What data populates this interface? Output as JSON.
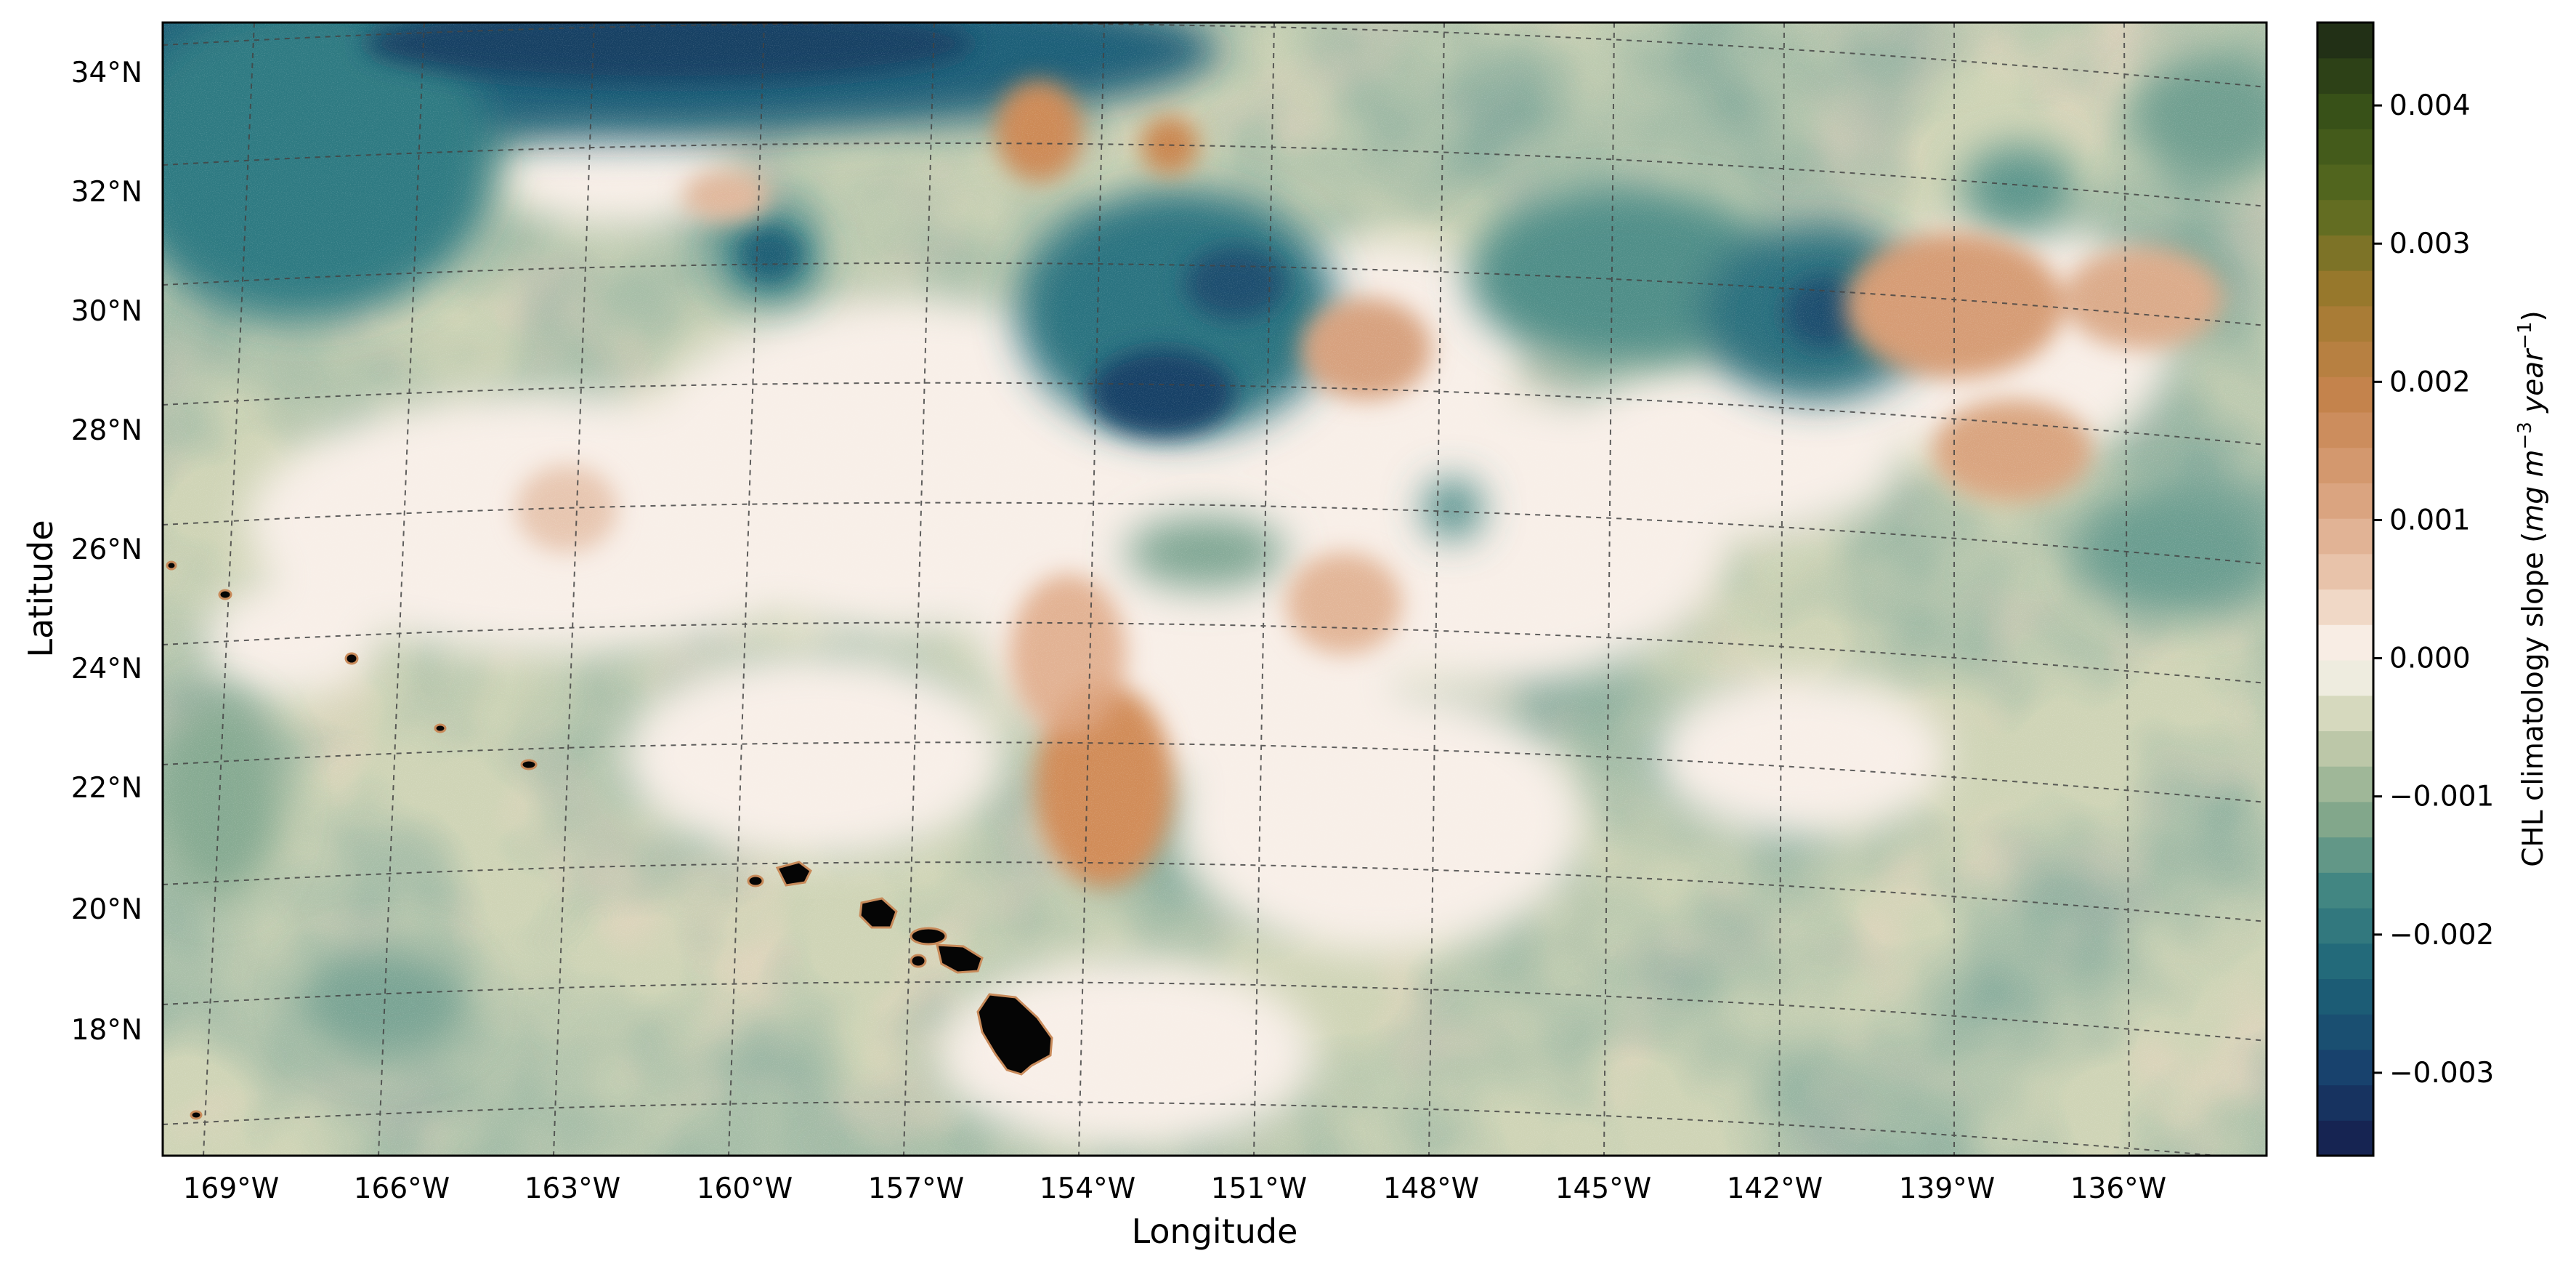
{
  "chart_data": {
    "type": "heatmap",
    "subtype": "geographic map",
    "title": "",
    "xlabel": "Longitude",
    "ylabel": "Latitude",
    "x_ticks": [
      "169°W",
      "166°W",
      "163°W",
      "160°W",
      "157°W",
      "154°W",
      "151°W",
      "148°W",
      "145°W",
      "142°W",
      "139°W",
      "136°W"
    ],
    "y_ticks": [
      "34°N",
      "32°N",
      "30°N",
      "28°N",
      "26°N",
      "24°N",
      "22°N",
      "20°N",
      "18°N"
    ],
    "x_range_deg_east": [
      -170.2,
      -133.4
    ],
    "y_range_deg_north": [
      16.0,
      34.7
    ],
    "gridlines": "dashed",
    "colorbar": {
      "label_prefix": "CHL climatology slope (",
      "label_units_main": "mg m",
      "label_units_exp1": "−3",
      "label_units_mid": " year",
      "label_units_exp2": "−1",
      "label_suffix": ")",
      "range": [
        -0.0036,
        0.0046
      ],
      "ticks": [
        "−0.003",
        "−0.002",
        "−0.001",
        "0.000",
        "0.001",
        "0.002",
        "0.003",
        "0.004"
      ],
      "tick_values": [
        -0.003,
        -0.002,
        -0.001,
        0.0,
        0.001,
        0.002,
        0.003,
        0.004
      ],
      "n_bins": 32,
      "colormap_stops": [
        {
          "v": -0.0036,
          "c": "#161d4b"
        },
        {
          "v": -0.003,
          "c": "#18406c"
        },
        {
          "v": -0.0023,
          "c": "#1d6478"
        },
        {
          "v": -0.0017,
          "c": "#3f8582"
        },
        {
          "v": -0.0011,
          "c": "#8aab8c"
        },
        {
          "v": -0.0005,
          "c": "#cdd1b1"
        },
        {
          "v": 0.0,
          "c": "#fbf6f1"
        },
        {
          "v": 0.0006,
          "c": "#e9c5ac"
        },
        {
          "v": 0.0012,
          "c": "#d8a07b"
        },
        {
          "v": 0.0019,
          "c": "#c5834c"
        },
        {
          "v": 0.0026,
          "c": "#9f7a2e"
        },
        {
          "v": 0.0033,
          "c": "#586b20"
        },
        {
          "v": 0.004,
          "c": "#364f17"
        },
        {
          "v": 0.0046,
          "c": "#1c2716"
        }
      ]
    },
    "field_features": [
      {
        "region": "northwest open ocean (34°N, 166–158°W)",
        "value": -0.0032
      },
      {
        "region": "central north (29°N, 153°W)",
        "value": -0.0028
      },
      {
        "region": "northeast (29.5°N, 141°W)",
        "value": -0.0027
      },
      {
        "region": "northeast positive patch (29.5°N, 138°W)",
        "value": 0.0019
      },
      {
        "region": "north positive patch (32.5°N, 156°W)",
        "value": 0.0019
      },
      {
        "region": "central positive (22°N, 154°W)",
        "value": 0.0017
      },
      {
        "region": "central-east positive (29°N, 149°W)",
        "value": 0.0014
      },
      {
        "region": "background subtropical gyre",
        "value": -0.0006
      }
    ],
    "masked_land": "Hawaiian Islands (black)",
    "land_color": "#050505"
  }
}
